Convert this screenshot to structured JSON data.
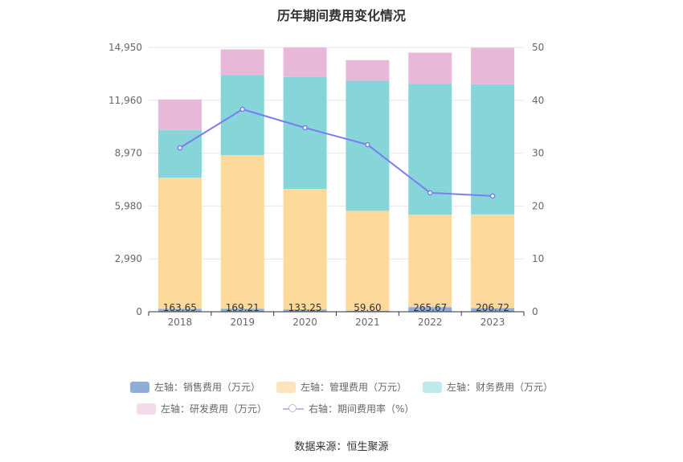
{
  "title": "历年期间费用变化情况",
  "source": "数据来源：恒生聚源",
  "colors": {
    "sales": "#8eaed9",
    "admin": "#fdd99b",
    "finance": "#85d5d9",
    "rd": "#e8b8d9",
    "rate": "#7b7cf0",
    "grid": "#e6e6e6",
    "axis": "#666666"
  },
  "legend": {
    "sales": "左轴：销售费用（万元）",
    "admin": "左轴：管理费用（万元）",
    "finance": "左轴：财务费用（万元）",
    "rd": "左轴：研发费用（万元）",
    "rate": "右轴：期间费用率（%）"
  },
  "chart_data": {
    "type": "bar",
    "stacked": true,
    "categories": [
      "2018",
      "2019",
      "2020",
      "2021",
      "2022",
      "2023"
    ],
    "series": [
      {
        "name": "左轴：销售费用（万元）",
        "key": "sales",
        "axis": "left",
        "values": [
          163.65,
          169.21,
          133.25,
          59.6,
          265.67,
          206.72
        ],
        "labels": [
          "163.65",
          "169.21",
          "133.25",
          "59.60",
          "265.67",
          "206.72"
        ]
      },
      {
        "name": "左轴：管理费用（万元）",
        "key": "admin",
        "axis": "left",
        "values": [
          7420,
          8690,
          6810,
          5650,
          5220,
          5300
        ]
      },
      {
        "name": "左轴：财务费用（万元）",
        "key": "finance",
        "axis": "left",
        "values": [
          2700,
          4540,
          6340,
          7350,
          7400,
          7360
        ]
      },
      {
        "name": "左轴：研发费用（万元）",
        "key": "rd",
        "axis": "left",
        "values": [
          1720,
          1440,
          1660,
          1170,
          1770,
          2060
        ]
      },
      {
        "name": "右轴：期间费用率（%）",
        "key": "rate",
        "axis": "right",
        "type": "line",
        "values": [
          31.0,
          38.3,
          34.8,
          31.6,
          22.5,
          21.9
        ]
      }
    ],
    "y_left": {
      "ticks": [
        0,
        2990,
        5980,
        8970,
        11960,
        14950
      ],
      "tick_labels": [
        "0",
        "2,990",
        "5,980",
        "8,970",
        "11,960",
        "14,950"
      ],
      "range": [
        0,
        14950
      ]
    },
    "y_right": {
      "ticks": [
        0,
        10,
        20,
        30,
        40,
        50
      ],
      "tick_labels": [
        "0",
        "10",
        "20",
        "30",
        "40",
        "50"
      ],
      "range": [
        0,
        50
      ]
    },
    "legend_position": "bottom"
  }
}
